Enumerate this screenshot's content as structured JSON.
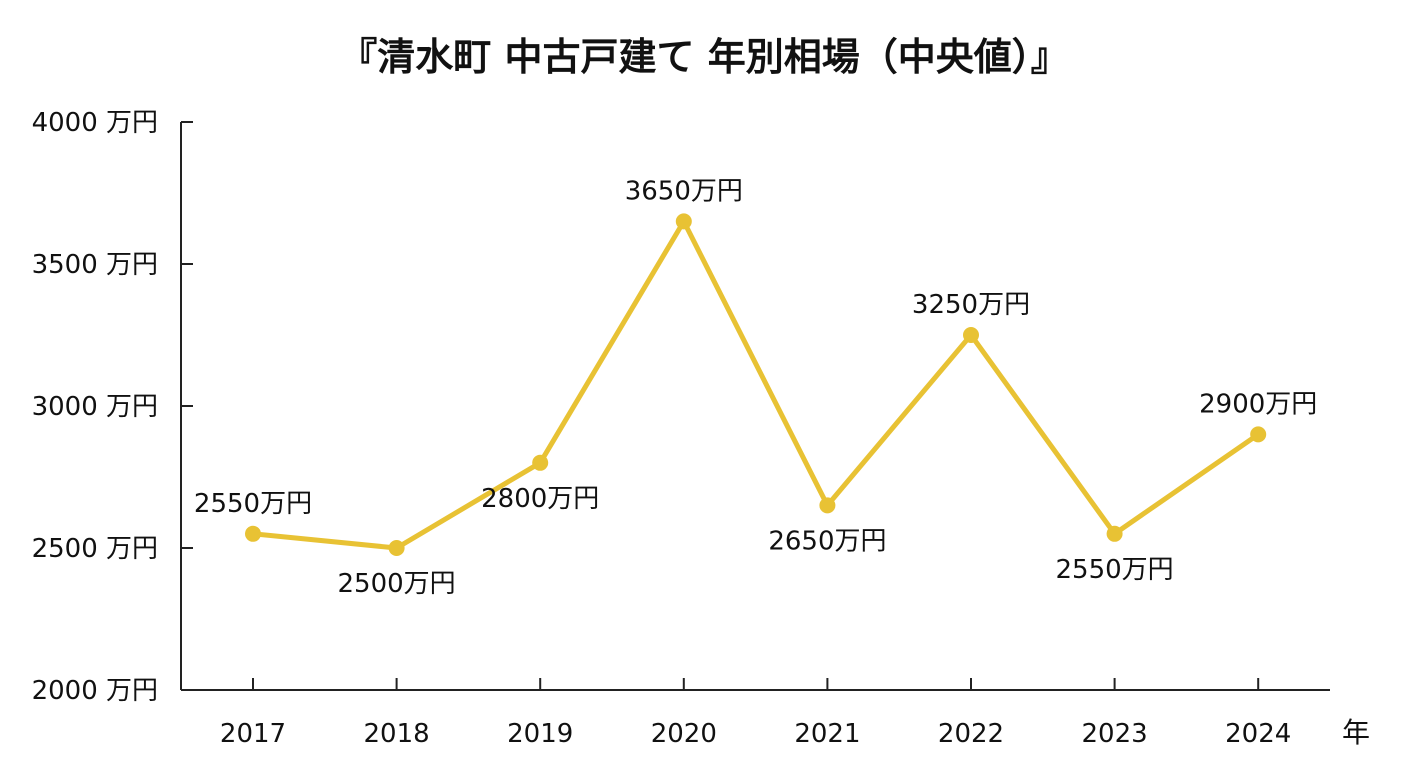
{
  "chart_data": {
    "type": "line",
    "title": "『清水町 中古戸建て 年別相場（中央値）』",
    "x_unit_label": "年",
    "categories": [
      "2017",
      "2018",
      "2019",
      "2020",
      "2021",
      "2022",
      "2023",
      "2024"
    ],
    "series": [
      {
        "values": [
          2550,
          2500,
          2800,
          3650,
          2650,
          3250,
          2550,
          2900
        ],
        "data_labels": [
          "2550万円",
          "2500万円",
          "2800万円",
          "3650万円",
          "2650万円",
          "3250万円",
          "2550万円",
          "2900万円"
        ],
        "label_positions": [
          "above",
          "below",
          "below",
          "above",
          "below",
          "above",
          "below",
          "above"
        ],
        "color": "#E8C234"
      }
    ],
    "ylim": [
      2000,
      4000
    ],
    "yticks": [
      2000,
      2500,
      3000,
      3500,
      4000
    ],
    "ytick_labels": [
      "2000 万円",
      "2500 万円",
      "3000 万円",
      "3500 万円",
      "4000 万円"
    ],
    "grid": false,
    "legend": "none",
    "colors": {
      "line": "#E8C234",
      "axis": "#222222",
      "text": "#111111",
      "background": "#ffffff"
    }
  }
}
